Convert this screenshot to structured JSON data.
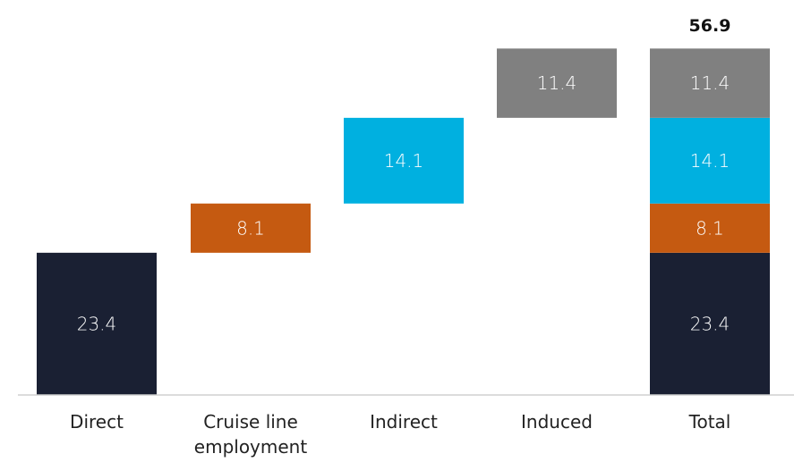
{
  "chart_data": {
    "type": "bar",
    "subtype": "waterfall",
    "categories": [
      "Direct",
      "Cruise line employment",
      "Indirect",
      "Induced",
      "Total"
    ],
    "category_lines": [
      [
        "Direct"
      ],
      [
        "Cruise line",
        "employment"
      ],
      [
        "Indirect"
      ],
      [
        "Induced"
      ],
      [
        "Total"
      ]
    ],
    "components": [
      {
        "category": "Direct",
        "value": 23.4,
        "label": "23.4",
        "color": "#1a2033"
      },
      {
        "category": "Cruise line employment",
        "value": 8.1,
        "label": "8.1",
        "color": "#c55a11"
      },
      {
        "category": "Indirect",
        "value": 14.1,
        "label": "14.1",
        "color": "#00b0e0"
      },
      {
        "category": "Induced",
        "value": 11.4,
        "label": "11.4",
        "color": "#808080"
      }
    ],
    "total": {
      "category": "Total",
      "value": 56.9,
      "label": "56.9"
    },
    "ylim": [
      0,
      56.9
    ],
    "grid": false,
    "legend": "none",
    "axis_color": "#d0d0d0"
  }
}
